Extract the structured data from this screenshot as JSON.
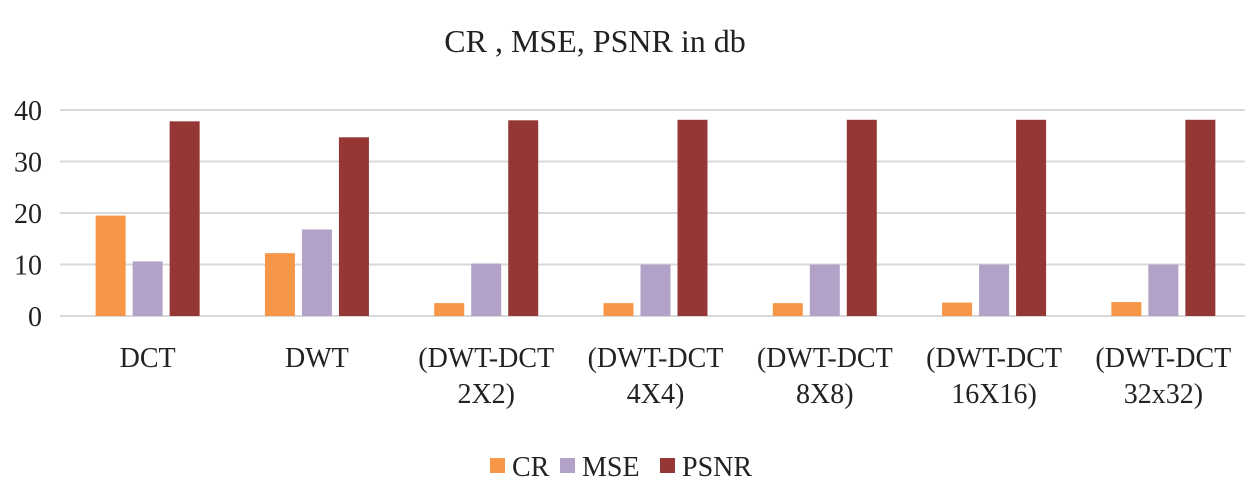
{
  "chart_data": {
    "type": "bar",
    "title": "CR , MSE, PSNR  in db",
    "xlabel": "",
    "ylabel": "",
    "ylim": [
      0,
      40
    ],
    "yticks": [
      0,
      10,
      20,
      30,
      40
    ],
    "grid": true,
    "legend_position": "bottom",
    "categories": [
      [
        "DCT"
      ],
      [
        "DWT"
      ],
      [
        "(DWT-DCT",
        "2X2)"
      ],
      [
        "(DWT-DCT",
        "4X4)"
      ],
      [
        "(DWT-DCT",
        "8X8)"
      ],
      [
        "(DWT-DCT",
        "16X16)"
      ],
      [
        "(DWT-DCT",
        "32x32)"
      ]
    ],
    "series": [
      {
        "name": "CR",
        "color": "#F79646",
        "values": [
          19.5,
          12.2,
          2.5,
          2.5,
          2.5,
          2.6,
          2.7
        ]
      },
      {
        "name": "MSE",
        "color": "#B3A2C7",
        "values": [
          10.6,
          16.8,
          10.2,
          10.0,
          10.0,
          10.0,
          10.0
        ]
      },
      {
        "name": "PSNR",
        "color": "#953735",
        "values": [
          37.8,
          34.7,
          38.0,
          38.1,
          38.1,
          38.1,
          38.1
        ]
      }
    ]
  }
}
